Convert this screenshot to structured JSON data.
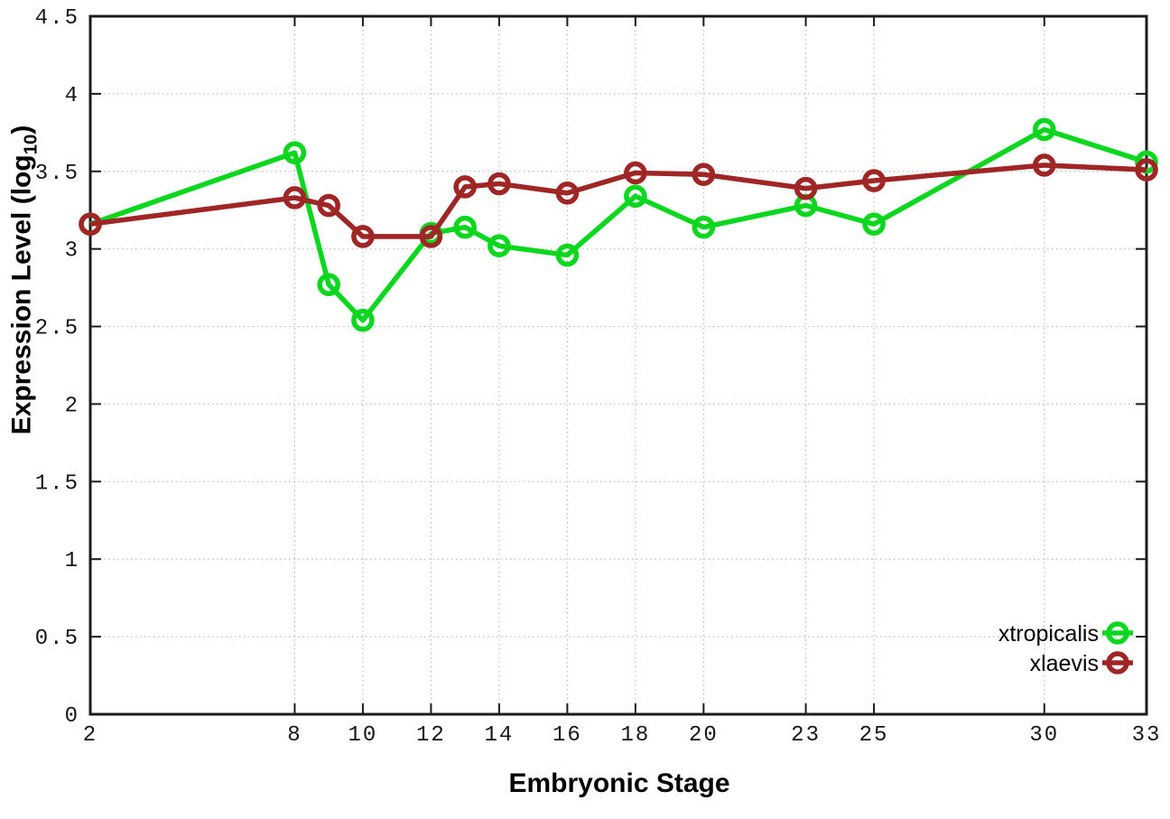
{
  "chart_data": {
    "type": "line",
    "title": "",
    "xlabel": "Embryonic Stage",
    "ylabel": "Expression Level (log10)",
    "ylabel_parts": {
      "prefix": "Expression Level (log",
      "sub": "10",
      "suffix": ")"
    },
    "x": [
      2,
      8,
      9,
      10,
      12,
      13,
      14,
      16,
      18,
      20,
      23,
      25,
      30,
      33
    ],
    "series": [
      {
        "name": "xtropicalis",
        "color": "#0bd71f",
        "marker": "open-circle",
        "values": [
          3.16,
          3.62,
          2.77,
          2.54,
          3.1,
          3.14,
          3.02,
          2.96,
          3.34,
          3.14,
          3.28,
          3.16,
          3.77,
          3.56
        ]
      },
      {
        "name": "xlaevis",
        "color": "#a02626",
        "marker": "open-circle",
        "values": [
          3.16,
          3.33,
          3.28,
          3.08,
          3.08,
          3.4,
          3.42,
          3.36,
          3.49,
          3.48,
          3.39,
          3.44,
          3.54,
          3.51
        ]
      }
    ],
    "xlim": [
      2,
      33
    ],
    "ylim": [
      0,
      4.5
    ],
    "x_ticks": {
      "values": [
        2,
        8,
        10,
        12,
        14,
        16,
        18,
        20,
        23,
        25,
        30,
        33
      ],
      "labels": [
        "2",
        "8",
        "10",
        "12",
        "14",
        "16",
        "18",
        "20",
        "23",
        "25",
        "30",
        "33"
      ]
    },
    "y_ticks": {
      "values": [
        0,
        0.5,
        1,
        1.5,
        2,
        2.5,
        3,
        3.5,
        4,
        4.5
      ],
      "labels": [
        "0",
        "0.5",
        "1",
        "1.5",
        "2",
        "2.5",
        "3",
        "3.5",
        "4",
        "4.5"
      ]
    },
    "grid": true,
    "legend_position": "bottom-right",
    "axis_color": "#1c1c1c",
    "grid_color": "#bcbcbc",
    "background": "#ffffff"
  }
}
